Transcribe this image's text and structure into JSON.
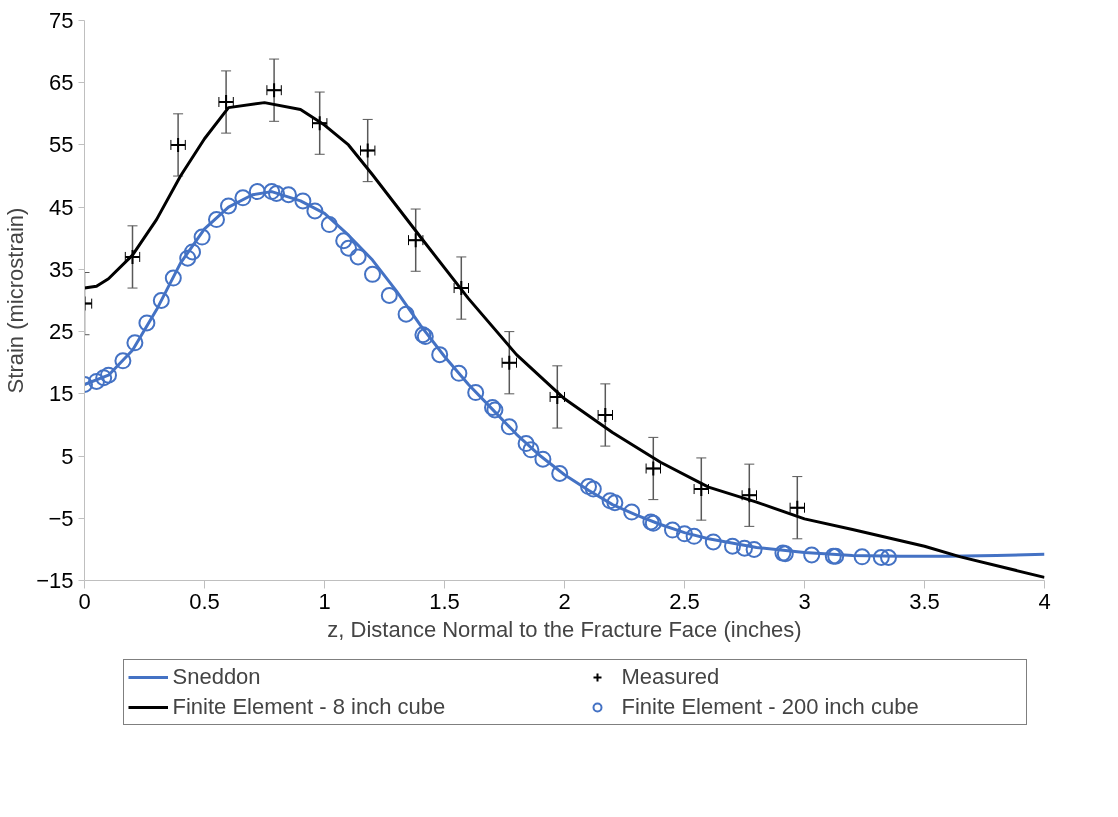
{
  "chart_data": {
    "type": "line",
    "xlabel": "z, Distance Normal to the Fracture Face (inches)",
    "ylabel": "Strain (microstrain)",
    "xlim": [
      0,
      4
    ],
    "xticks": [
      0,
      0.5,
      1,
      1.5,
      2,
      2.5,
      3,
      3.5,
      4
    ],
    "ylim": [
      -15,
      75
    ],
    "yticks": [
      -15,
      -5,
      5,
      15,
      25,
      35,
      45,
      55,
      65,
      75
    ],
    "grid": false,
    "legend": "bottom",
    "series": [
      {
        "name": "Sneddon",
        "color": "#4472c4",
        "x": [
          0,
          0.1,
          0.2,
          0.3,
          0.4,
          0.5,
          0.6,
          0.7,
          0.78,
          0.9,
          1.0,
          1.1,
          1.2,
          1.3,
          1.4,
          1.5,
          1.6,
          1.7,
          1.8,
          1.9,
          2.0,
          2.1,
          2.2,
          2.3,
          2.4,
          2.5,
          2.6,
          2.8,
          3.0,
          3.2,
          3.4,
          3.6,
          3.8,
          4.0
        ],
        "values": [
          16.5,
          18,
          22,
          28.5,
          36,
          41.5,
          45,
          47,
          47.5,
          46,
          44,
          40.5,
          36.5,
          31.5,
          26,
          21,
          16.5,
          12.5,
          8.5,
          5,
          2,
          -0.5,
          -2.8,
          -4.5,
          -6,
          -7.3,
          -8.3,
          -9.7,
          -10.5,
          -11,
          -11.1,
          -11.1,
          -11,
          -10.8
        ]
      },
      {
        "name": "Finite Element - 8 inch cube",
        "type": "line",
        "color": "#000000",
        "x": [
          0,
          0.05,
          0.1,
          0.2,
          0.3,
          0.4,
          0.5,
          0.6,
          0.75,
          0.9,
          1.0,
          1.1,
          1.2,
          1.4,
          1.6,
          1.8,
          2.0,
          2.2,
          2.4,
          2.6,
          2.8,
          3.0,
          3.2,
          3.5,
          3.65,
          4.0
        ],
        "values": [
          32,
          32.3,
          33.5,
          37.3,
          43,
          50,
          56,
          61,
          61.8,
          60.7,
          58.2,
          55,
          50.2,
          40.2,
          30.3,
          21.3,
          14.2,
          8.8,
          4,
          0,
          -2.4,
          -5.1,
          -6.8,
          -9.5,
          -11.2,
          -14.5
        ]
      },
      {
        "name": "Measured",
        "type": "scatter",
        "color": "#000000",
        "marker": "cross",
        "x": [
          0,
          0.2,
          0.39,
          0.59,
          0.79,
          0.98,
          1.18,
          1.38,
          1.57,
          1.77,
          1.97,
          2.17,
          2.37,
          2.57,
          2.77,
          2.97
        ],
        "values": [
          29.5,
          37,
          55,
          61.9,
          63.8,
          58.5,
          54.1,
          39.7,
          32,
          20,
          14.5,
          11.6,
          3,
          -0.3,
          -1.3,
          -3.3
        ],
        "errors": [
          5,
          5,
          5,
          5,
          5,
          5,
          5,
          5,
          5,
          5,
          5,
          5,
          5,
          5,
          5,
          5
        ],
        "xerrors": [
          0.03,
          0.03,
          0.03,
          0.03,
          0.03,
          0.03,
          0.03,
          0.03,
          0.03,
          0.03,
          0.03,
          0.03,
          0.03,
          0.03,
          0.03,
          0.03
        ]
      },
      {
        "name": "Finite Element - 200 inch cube",
        "type": "scatter",
        "color": "#4472c4",
        "marker": "circle",
        "x": [
          0,
          0.05,
          0.08,
          0.1,
          0.16,
          0.21,
          0.26,
          0.32,
          0.37,
          0.43,
          0.45,
          0.49,
          0.55,
          0.6,
          0.66,
          0.72,
          0.78,
          0.8,
          0.85,
          0.91,
          0.96,
          1.02,
          1.08,
          1.1,
          1.14,
          1.2,
          1.27,
          1.34,
          1.41,
          1.42,
          1.48,
          1.56,
          1.63,
          1.7,
          1.71,
          1.77,
          1.84,
          1.86,
          1.91,
          1.98,
          2.1,
          2.12,
          2.19,
          2.21,
          2.28,
          2.36,
          2.37,
          2.45,
          2.5,
          2.54,
          2.62,
          2.7,
          2.75,
          2.79,
          2.91,
          2.92,
          3.03,
          3.12,
          3.13,
          3.24,
          3.32,
          3.35
        ],
        "values": [
          16.5,
          17,
          17.6,
          18,
          20.3,
          23.2,
          26.4,
          30,
          33.6,
          36.8,
          37.8,
          40.2,
          43,
          45.2,
          46.5,
          47.5,
          47.5,
          47.2,
          47,
          46,
          44.4,
          42.2,
          39.6,
          38.4,
          37,
          34.2,
          30.8,
          27.8,
          24.5,
          24.2,
          21.3,
          18.3,
          15.2,
          12.8,
          12.4,
          9.7,
          7,
          6,
          4.5,
          2.2,
          0.1,
          -0.3,
          -2.2,
          -2.5,
          -4,
          -5.6,
          -5.8,
          -6.9,
          -7.5,
          -7.9,
          -8.8,
          -9.5,
          -9.8,
          -10,
          -10.6,
          -10.7,
          -10.9,
          -11.1,
          -11.1,
          -11.2,
          -11.3,
          -11.3
        ]
      }
    ]
  }
}
